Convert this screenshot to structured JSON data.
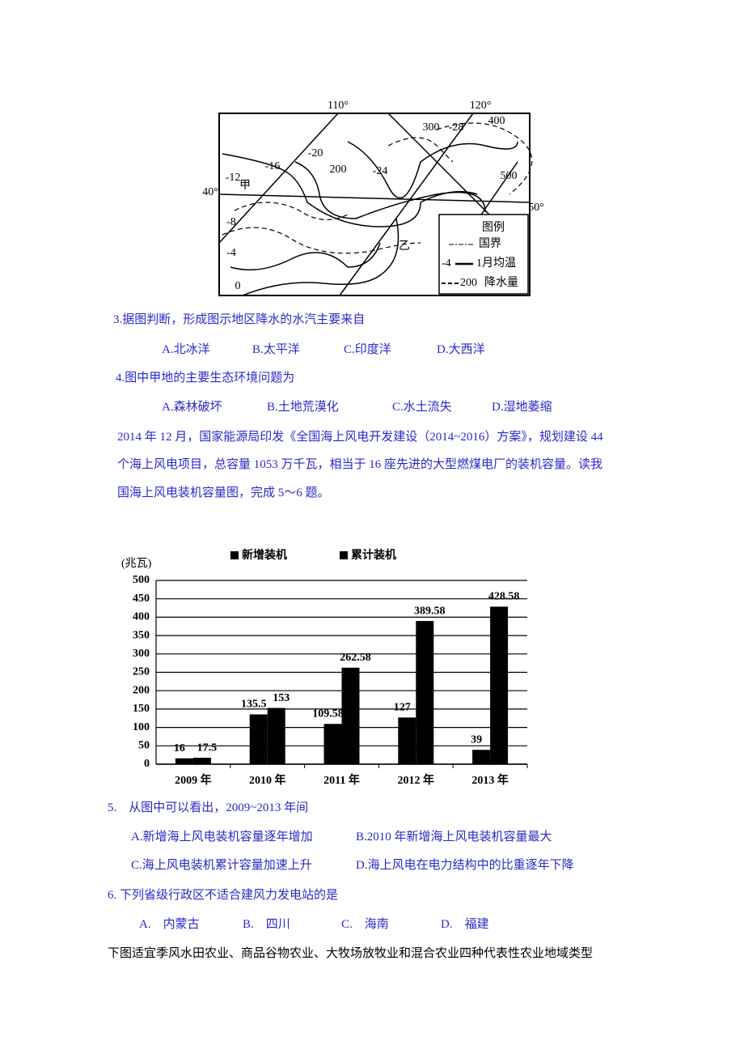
{
  "map": {
    "labels": [
      "110°",
      "120°",
      "40°",
      "50°",
      "300",
      "-28",
      "400",
      "-16",
      "-20",
      "200",
      "-24",
      "-12",
      "甲",
      "-8",
      "-4",
      "0",
      "500",
      "乙"
    ],
    "legend": {
      "title": "图例",
      "border": "国界",
      "temp_sample": "-4",
      "temp": "1月均温",
      "rain_sample": "200",
      "rain": "降水量"
    }
  },
  "questions": [
    {
      "stem": "3.据图判断，形成图示地区降水的水汽主要来自",
      "options": [
        "A.北冰洋",
        "B.太平洋",
        "C.印度洋",
        "D.大西洋"
      ]
    },
    {
      "stem": "4.图中甲地的主要生态环境问题为",
      "options": [
        "A.森林破坏",
        "B.土地荒漠化",
        "C.水土流失",
        "D.湿地萎缩"
      ]
    }
  ],
  "passage": [
    "2014 年 12 月，国家能源局印发《全国海上风电开发建设（2014~2016）方案》，规划建设 44",
    "个海上风电项目，总容量 1053 万千瓦，相当于 16 座先进的大型燃煤电厂的装机容量。读我",
    "国海上风电装机容量图，完成 5～6 题。"
  ],
  "chart_data": {
    "type": "bar",
    "y_label": "(兆瓦)",
    "categories": [
      "2009 年",
      "2010 年",
      "2011 年",
      "2012 年",
      "2013 年"
    ],
    "series": [
      {
        "name": "新增装机",
        "color": "#000000",
        "values": [
          16,
          135.5,
          109.58,
          127,
          39
        ]
      },
      {
        "name": "累计装机",
        "color": "#000000",
        "values": [
          17.5,
          153,
          262.58,
          389.58,
          428.58
        ]
      }
    ],
    "ylim": [
      0,
      500
    ],
    "yticks": [
      0,
      50,
      100,
      150,
      200,
      250,
      300,
      350,
      400,
      450,
      500
    ],
    "grid": true
  },
  "questions2": [
    {
      "stem": "5.　从图中可以看出，2009~2013 年间",
      "options": [
        "A.新增海上风电装机容量逐年增加",
        "B.2010 年新增海上风电装机容量最大",
        "C.海上风电装机累计容量加速上升",
        "D.海上风电在电力结构中的比重逐年下降"
      ]
    },
    {
      "stem": "6.  下列省级行政区不适合建风力发电站的是",
      "options": [
        "A.　内蒙古",
        "B.　四川",
        "C.　海南",
        "D.　福建"
      ]
    }
  ],
  "footer": "下图适宜季风水田农业、商品谷物农业、大牧场放牧业和混合农业四种代表性农业地域类型"
}
